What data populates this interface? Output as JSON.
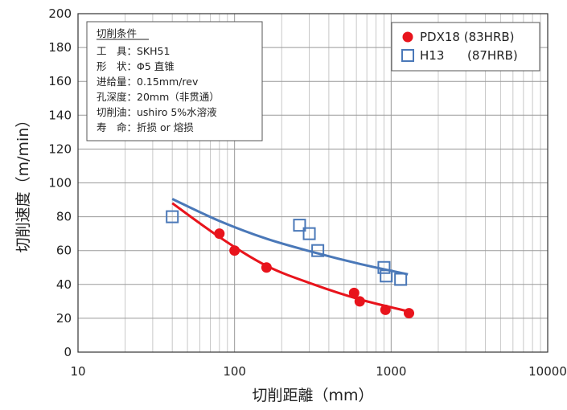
{
  "chart_data": {
    "type": "scatter",
    "xlabel": "切削距離（mm）",
    "ylabel": "切削速度（m/min）",
    "xscale": "log",
    "xlim": [
      10,
      10000
    ],
    "ylim": [
      0,
      200
    ],
    "x_ticks": [
      "10",
      "100",
      "1000",
      "10000"
    ],
    "y_ticks": [
      "0",
      "20",
      "40",
      "60",
      "80",
      "100",
      "120",
      "140",
      "160",
      "180",
      "200"
    ],
    "grid": true,
    "legend_position": "top-right",
    "series": [
      {
        "name": "PDX18 (83HRB)",
        "marker": "filled-circle",
        "color": "#e8141c",
        "points": [
          [
            80,
            70
          ],
          [
            100,
            60
          ],
          [
            160,
            50
          ],
          [
            580,
            35
          ],
          [
            630,
            30
          ],
          [
            920,
            25
          ],
          [
            1300,
            23
          ]
        ],
        "trendline": [
          [
            40,
            88
          ],
          [
            80,
            68
          ],
          [
            160,
            51
          ],
          [
            320,
            40
          ],
          [
            640,
            31
          ],
          [
            1300,
            24
          ]
        ]
      },
      {
        "name": "H13      (87HRB)",
        "marker": "open-square",
        "color": "#4a78b8",
        "points": [
          [
            40,
            80
          ],
          [
            260,
            75
          ],
          [
            300,
            70
          ],
          [
            340,
            60
          ],
          [
            900,
            50
          ],
          [
            930,
            45
          ],
          [
            1150,
            43
          ]
        ],
        "trendline": [
          [
            40,
            90.5
          ],
          [
            80,
            77.5
          ],
          [
            160,
            67
          ],
          [
            320,
            59
          ],
          [
            640,
            52
          ],
          [
            1280,
            46
          ]
        ]
      }
    ],
    "annotation": {
      "title": "切削条件",
      "lines": [
        "工　具：SKH51",
        "形　状：Φ5 直锥",
        "进给量：0.15mm/rev",
        "孔深度：20mm（非贯通）",
        "切削油：ushiro 5%水溶液",
        "寿　命：折损 or 熔损"
      ]
    }
  }
}
